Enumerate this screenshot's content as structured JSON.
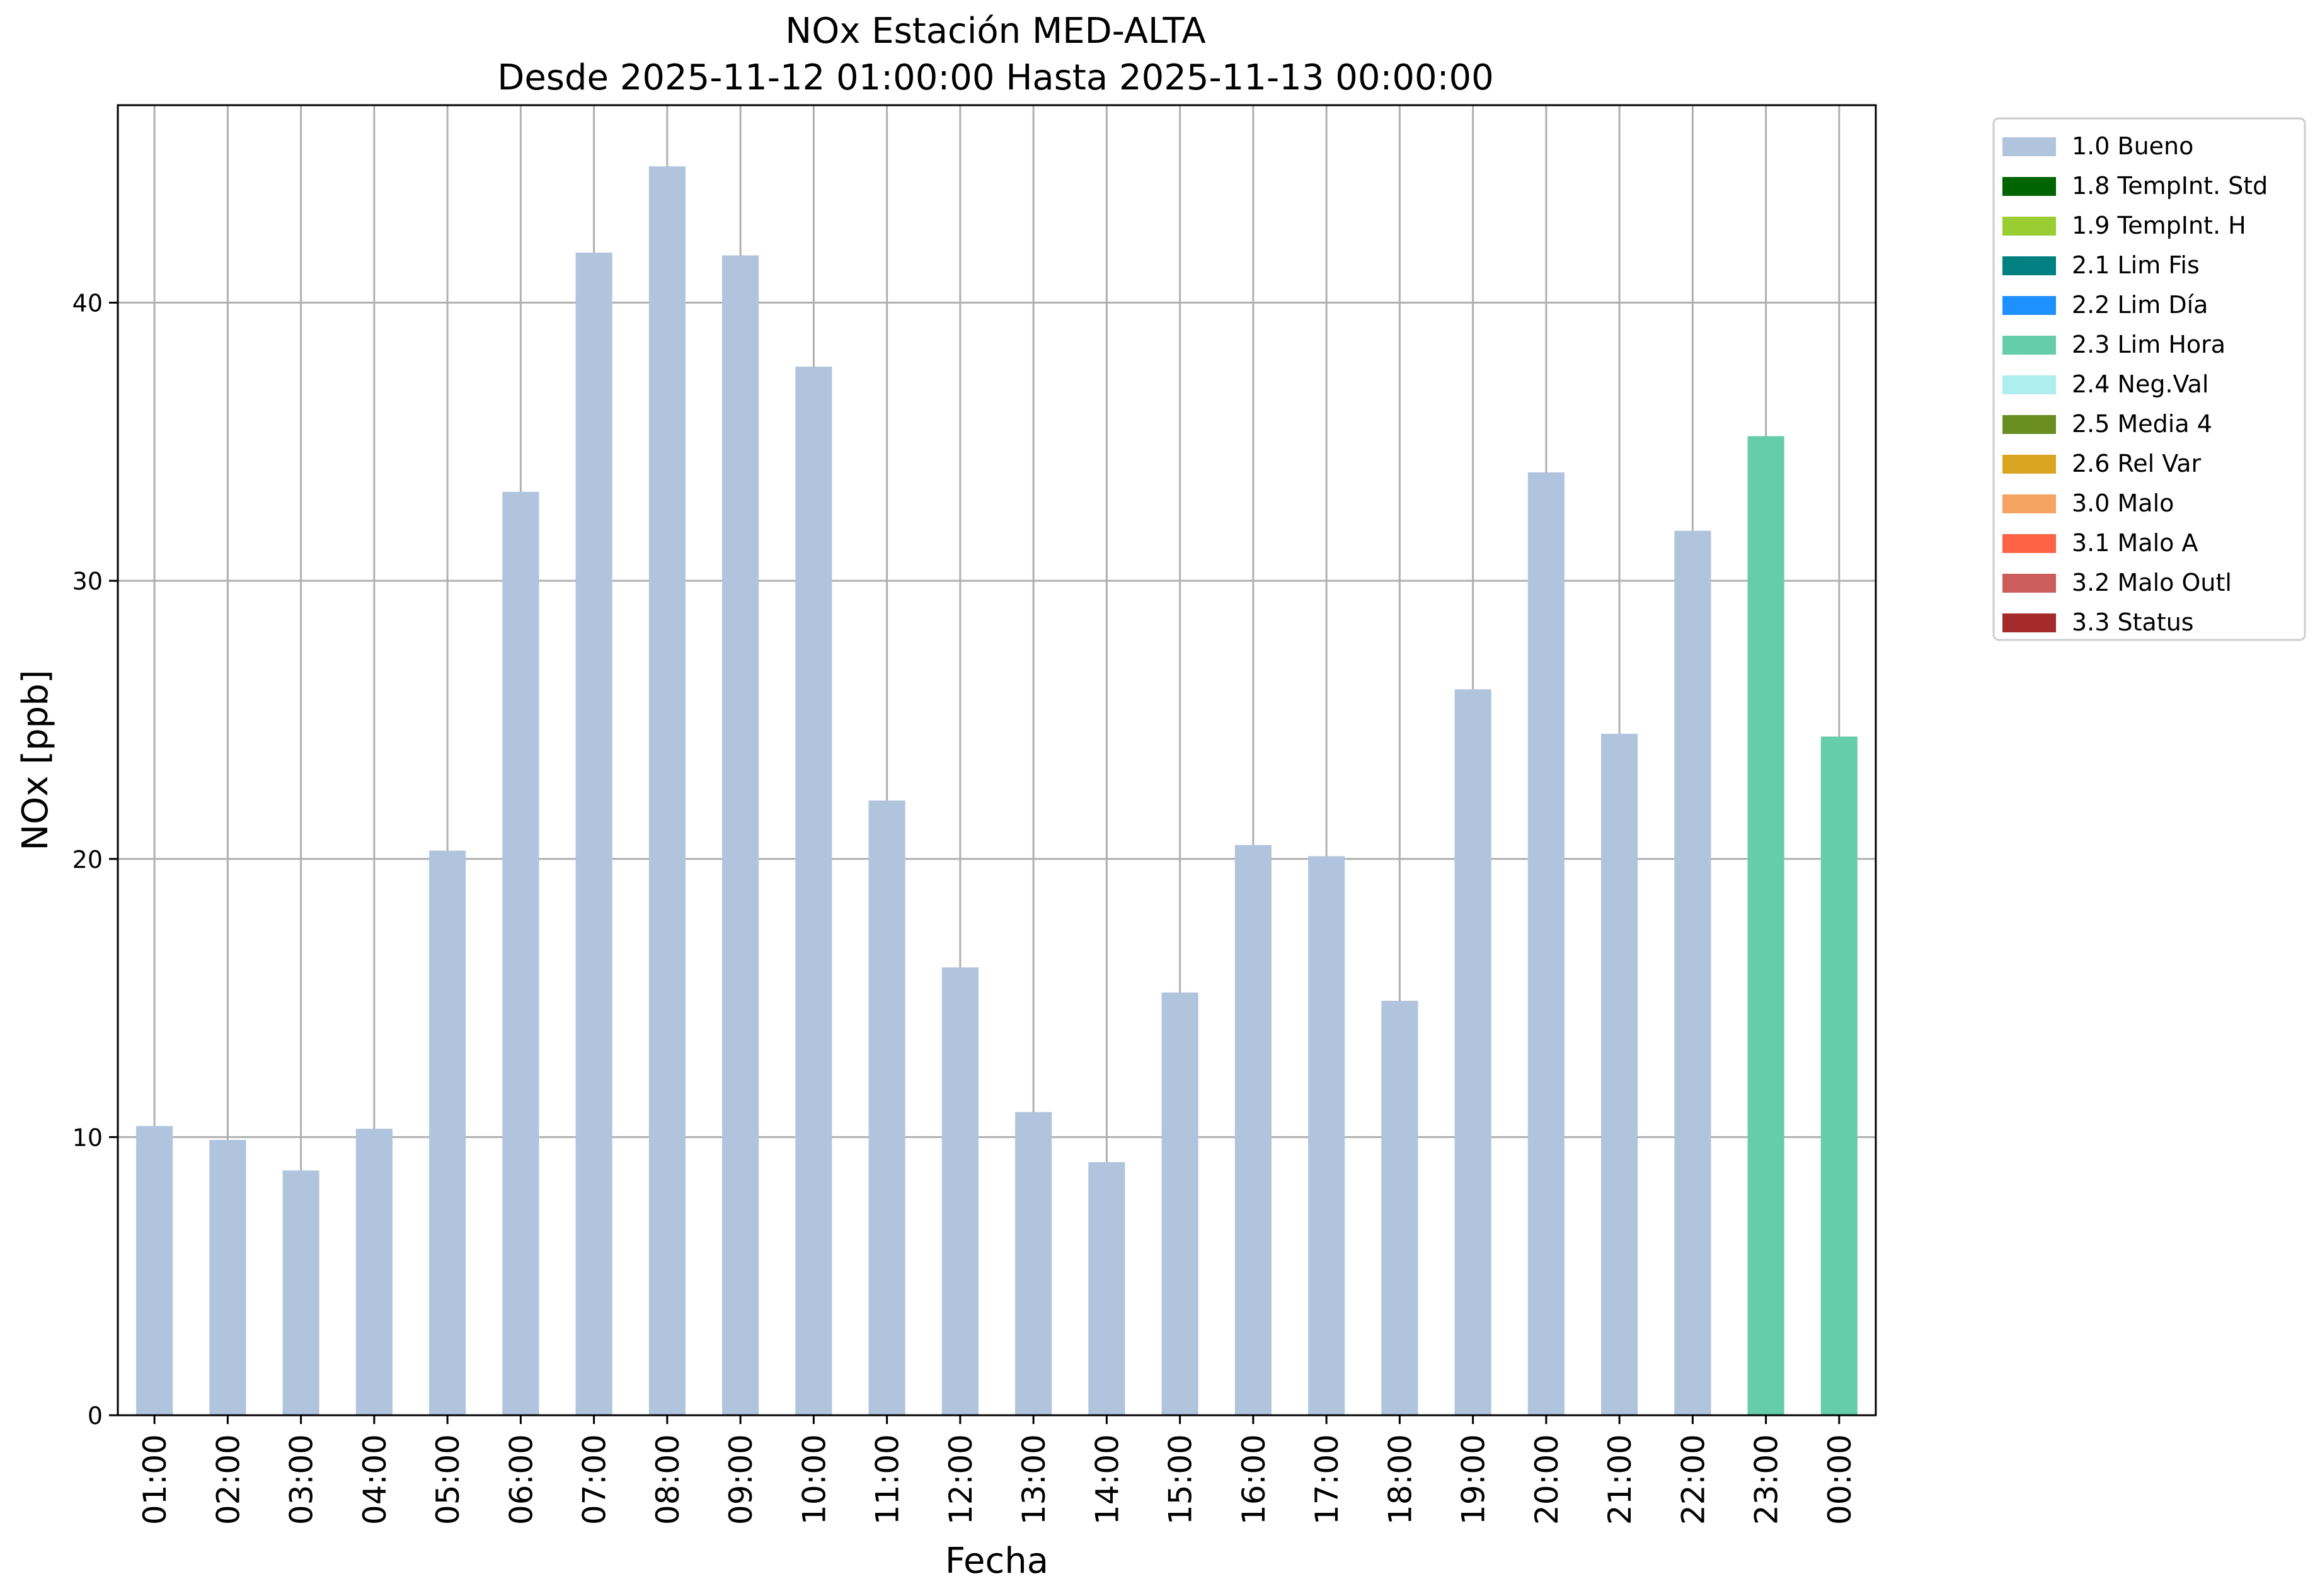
{
  "chart_data": {
    "type": "bar",
    "title": "NOx Estación MED-ALTA",
    "subtitle": "Desde 2025-11-12 01:00:00 Hasta 2025-11-13 00:00:00",
    "xlabel": "Fecha",
    "ylabel": "NOx [ppb]",
    "ylim": [
      0,
      47.1
    ],
    "yticks": [
      0,
      10,
      20,
      30,
      40
    ],
    "grid": true,
    "legend_position": "outside-top-right",
    "categories": [
      "01:00",
      "02:00",
      "03:00",
      "04:00",
      "05:00",
      "06:00",
      "07:00",
      "08:00",
      "09:00",
      "10:00",
      "11:00",
      "12:00",
      "13:00",
      "14:00",
      "15:00",
      "16:00",
      "17:00",
      "18:00",
      "19:00",
      "20:00",
      "21:00",
      "22:00",
      "23:00",
      "00:00"
    ],
    "values": [
      10.4,
      9.9,
      8.8,
      10.3,
      20.3,
      33.2,
      41.8,
      44.9,
      41.7,
      37.7,
      22.1,
      16.1,
      10.9,
      9.1,
      15.2,
      20.5,
      20.1,
      14.9,
      26.1,
      33.9,
      24.5,
      31.8,
      35.2,
      24.4
    ],
    "flags": [
      "1.0 Bueno",
      "1.0 Bueno",
      "1.0 Bueno",
      "1.0 Bueno",
      "1.0 Bueno",
      "1.0 Bueno",
      "1.0 Bueno",
      "1.0 Bueno",
      "1.0 Bueno",
      "1.0 Bueno",
      "1.0 Bueno",
      "1.0 Bueno",
      "1.0 Bueno",
      "1.0 Bueno",
      "1.0 Bueno",
      "1.0 Bueno",
      "1.0 Bueno",
      "1.0 Bueno",
      "1.0 Bueno",
      "1.0 Bueno",
      "1.0 Bueno",
      "1.0 Bueno",
      "2.3 Lim Hora",
      "2.3 Lim Hora"
    ],
    "legend": [
      {
        "label": "1.0 Bueno",
        "color": "#b0c4de"
      },
      {
        "label": "1.8 TempInt. Std",
        "color": "#006400"
      },
      {
        "label": "1.9 TempInt. H",
        "color": "#9acd32"
      },
      {
        "label": "2.1 Lim Fis",
        "color": "#008080"
      },
      {
        "label": "2.2 Lim Día",
        "color": "#1e90ff"
      },
      {
        "label": "2.3 Lim Hora",
        "color": "#66cdaa"
      },
      {
        "label": "2.4 Neg.Val",
        "color": "#afeeee"
      },
      {
        "label": "2.5 Media 4",
        "color": "#6b8e23"
      },
      {
        "label": "2.6 Rel Var",
        "color": "#daa520"
      },
      {
        "label": "3.0 Malo",
        "color": "#f4a460"
      },
      {
        "label": "3.1 Malo A",
        "color": "#ff6347"
      },
      {
        "label": "3.2 Malo Outl",
        "color": "#cd5c5c"
      },
      {
        "label": "3.3 Status",
        "color": "#a52a2a"
      }
    ],
    "colors": {
      "grid": "#b0b0b0",
      "axes": "#000000"
    }
  }
}
